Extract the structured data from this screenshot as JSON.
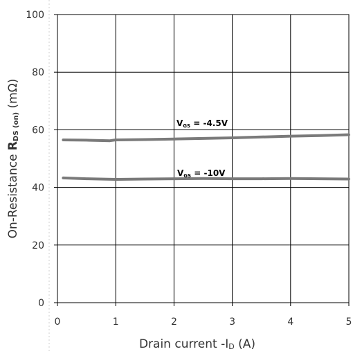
{
  "chart_data": {
    "type": "line",
    "xlabel": "Drain current -I",
    "xlabel_sub": "D",
    "xlabel_unit": " (A)",
    "ylabel_prefix": "On-Resistance ",
    "ylabel_sym": "R",
    "ylabel_sub": "DS (on)",
    "ylabel_unit": " (mΩ)",
    "xlim": [
      0,
      5
    ],
    "ylim": [
      0,
      100
    ],
    "x_ticks": [
      0,
      1,
      2,
      3,
      4,
      5
    ],
    "y_ticks": [
      0,
      20,
      40,
      60,
      80,
      100
    ],
    "x_tick_labels": [
      "0",
      "1",
      "2",
      "3",
      "4",
      "5"
    ],
    "y_tick_labels": [
      "0",
      "20",
      "40",
      "60",
      "80",
      "100"
    ],
    "grid": true,
    "series": [
      {
        "name": "V = -4.5V",
        "label_main": "V",
        "label_sub": "GS",
        "label_rest": " = -4.5V",
        "x": [
          0.1,
          0.5,
          0.9,
          1.0,
          1.5,
          2.0,
          2.5,
          3.0,
          3.5,
          4.0,
          4.5,
          5.0
        ],
        "values": [
          56.5,
          56.4,
          56.2,
          56.5,
          56.6,
          56.8,
          57.0,
          57.2,
          57.5,
          57.8,
          58.0,
          58.3
        ],
        "color": "#7a7a7a"
      },
      {
        "name": "V = -10V",
        "label_main": "V",
        "label_sub": "GS",
        "label_rest": " = -10V",
        "x": [
          0.1,
          0.5,
          1.0,
          1.5,
          2.0,
          2.5,
          3.0,
          3.5,
          4.0,
          4.5,
          5.0
        ],
        "values": [
          43.3,
          43.0,
          42.8,
          42.9,
          43.0,
          43.1,
          43.0,
          43.0,
          43.1,
          43.0,
          42.9
        ],
        "color": "#7a7a7a"
      }
    ]
  }
}
